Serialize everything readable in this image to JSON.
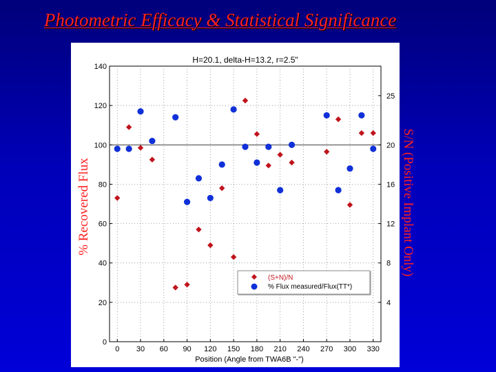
{
  "slide": {
    "title": "Photometric Efficacy & Statistical Significance",
    "ylabel_left": "% Recovered Flux",
    "ylabel_right": "S/N (Positive Implant Only)"
  },
  "chart_data": {
    "type": "scatter",
    "title": "H=20.1, delta-H=13.2, r=2.5\"",
    "xlabel": "Position (Angle from TWA6B \"-\")",
    "xlim": [
      -10,
      340
    ],
    "ylim": [
      0,
      140
    ],
    "y2lim": [
      0,
      28
    ],
    "x_ticks": [
      0,
      30,
      60,
      90,
      120,
      150,
      180,
      210,
      240,
      270,
      300,
      330
    ],
    "y_ticks": [
      0,
      20,
      40,
      60,
      80,
      100,
      120,
      140
    ],
    "y2_ticks": [
      4,
      8,
      12,
      16,
      20,
      25
    ],
    "reference_line_y": 100,
    "grid": true,
    "legend_position": "bottom-right",
    "colors": {
      "sn": "#c0141c",
      "flux": "#1030d8"
    },
    "series": [
      {
        "name": "(S+N)/N",
        "axis": "right",
        "marker": "diamond",
        "color": "#c0141c",
        "points": [
          [
            0,
            14.6
          ],
          [
            15,
            21.8
          ],
          [
            30,
            19.7
          ],
          [
            45,
            18.5
          ],
          [
            75,
            5.5
          ],
          [
            90,
            5.8
          ],
          [
            105,
            11.4
          ],
          [
            120,
            9.8
          ],
          [
            135,
            15.6
          ],
          [
            150,
            8.6
          ],
          [
            165,
            24.5
          ],
          [
            180,
            21.1
          ],
          [
            195,
            17.9
          ],
          [
            210,
            19
          ],
          [
            225,
            18.2
          ],
          [
            270,
            19.3
          ],
          [
            285,
            22.6
          ],
          [
            300,
            13.9
          ],
          [
            315,
            21.2
          ],
          [
            330,
            21.2
          ]
        ]
      },
      {
        "name": "% Flux measured/Flux(TT*)",
        "axis": "left",
        "marker": "circle",
        "color": "#1030d8",
        "points": [
          [
            0,
            98
          ],
          [
            15,
            98
          ],
          [
            30,
            117
          ],
          [
            45,
            102
          ],
          [
            75,
            114
          ],
          [
            90,
            71
          ],
          [
            105,
            83
          ],
          [
            120,
            73
          ],
          [
            135,
            90
          ],
          [
            150,
            118
          ],
          [
            165,
            99
          ],
          [
            180,
            91
          ],
          [
            195,
            99
          ],
          [
            210,
            77
          ],
          [
            225,
            100
          ],
          [
            270,
            115
          ],
          [
            285,
            77
          ],
          [
            300,
            88
          ],
          [
            315,
            115
          ],
          [
            330,
            98
          ]
        ]
      }
    ]
  }
}
